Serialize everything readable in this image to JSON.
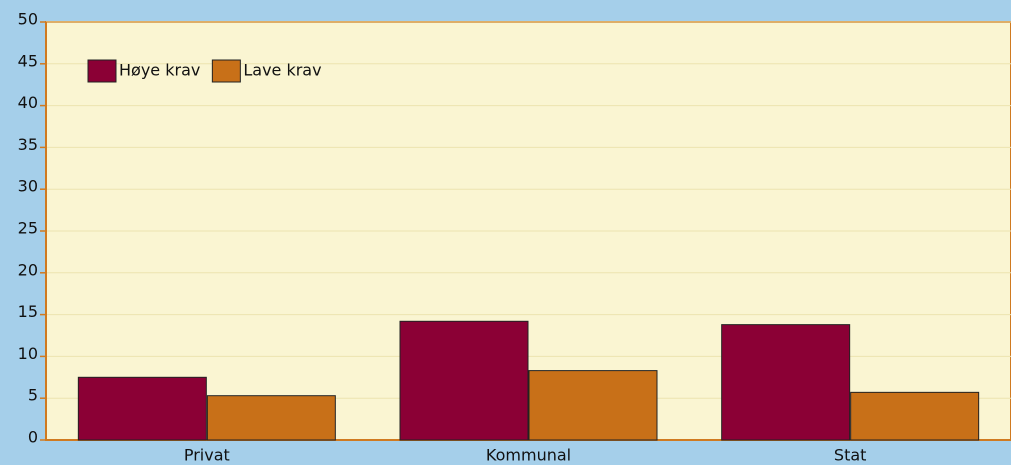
{
  "chart_data": {
    "type": "bar",
    "categories": [
      "Privat",
      "Kommunal",
      "Stat"
    ],
    "series": [
      {
        "name": "Høye krav",
        "color": "#8b0035",
        "values": [
          7.5,
          14.2,
          13.8
        ]
      },
      {
        "name": "Lave krav",
        "color": "#c87018",
        "values": [
          5.3,
          8.3,
          5.7
        ]
      }
    ],
    "ylim": [
      0,
      50
    ],
    "yticks": [
      0,
      5,
      10,
      15,
      20,
      25,
      30,
      35,
      40,
      45,
      50
    ],
    "grid": true,
    "legend": "top-left"
  }
}
